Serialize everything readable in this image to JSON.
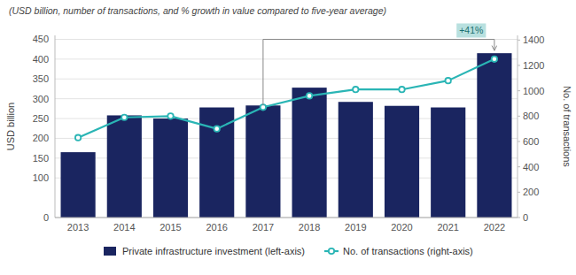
{
  "chart_data": {
    "type": "bar",
    "subtitle": "(USD billion, number of transactions, and % growth in value compared to five-year average)",
    "categories": [
      "2013",
      "2014",
      "2015",
      "2016",
      "2017",
      "2018",
      "2019",
      "2020",
      "2021",
      "2022"
    ],
    "series": [
      {
        "name": "Private infrastructure investment (left-axis)",
        "type": "bar",
        "color": "#1a2560",
        "values": [
          165,
          258,
          250,
          278,
          283,
          328,
          292,
          282,
          278,
          415
        ]
      },
      {
        "name": "No. of transactions (right-axis)",
        "type": "line",
        "axis": "y2",
        "color": "#2ab5b5",
        "marker": "circle",
        "values": [
          630,
          790,
          800,
          700,
          870,
          960,
          1010,
          1010,
          1080,
          1250
        ]
      }
    ],
    "ylabel": "USD billion",
    "y2label": "No. of transactions",
    "ylim": [
      0,
      460
    ],
    "yticks": [
      0,
      100,
      150,
      200,
      250,
      300,
      350,
      400,
      450
    ],
    "y2lim": [
      0,
      1437
    ],
    "y2ticks": [
      0,
      200,
      400,
      600,
      800,
      1000,
      1200,
      1400
    ],
    "grid": true,
    "legend": "bottom",
    "annotations": [
      {
        "text": "+41%",
        "from": "2017",
        "to": "2022",
        "y": 450,
        "color": "#b8e0df"
      }
    ]
  }
}
